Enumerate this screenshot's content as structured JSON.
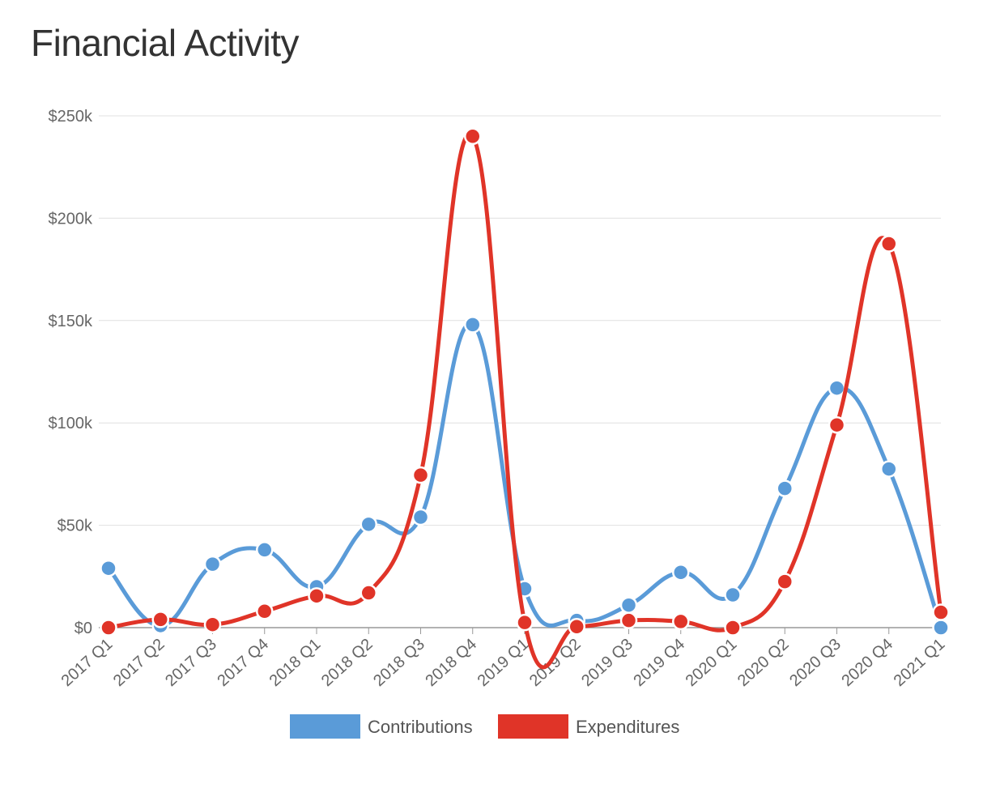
{
  "title": "Financial Activity",
  "chart_data": {
    "type": "line",
    "categories": [
      "2017 Q1",
      "2017 Q2",
      "2017 Q3",
      "2017 Q4",
      "2018 Q1",
      "2018 Q2",
      "2018 Q3",
      "2018 Q4",
      "2019 Q1",
      "2019 Q2",
      "2019 Q3",
      "2019 Q4",
      "2020 Q1",
      "2020 Q2",
      "2020 Q3",
      "2020 Q4",
      "2021 Q1"
    ],
    "y_ticks": [
      0,
      50000,
      100000,
      150000,
      200000,
      250000
    ],
    "y_tick_labels": [
      "$0",
      "$50k",
      "$100k",
      "$150k",
      "$200k",
      "$250k"
    ],
    "ylim": [
      0,
      250000
    ],
    "grid": true,
    "legend_position": "bottom",
    "series": [
      {
        "name": "Contributions",
        "color": "#5a9bd8",
        "values": [
          29000,
          1000,
          31000,
          38000,
          20000,
          50500,
          54000,
          148000,
          19000,
          3500,
          11000,
          27000,
          16000,
          68000,
          117000,
          77500,
          0
        ]
      },
      {
        "name": "Expenditures",
        "color": "#e03428",
        "values": [
          0,
          4000,
          1500,
          8000,
          15500,
          17000,
          74500,
          240000,
          2500,
          500,
          3500,
          3000,
          0,
          22500,
          99000,
          187500,
          7500
        ]
      }
    ]
  }
}
